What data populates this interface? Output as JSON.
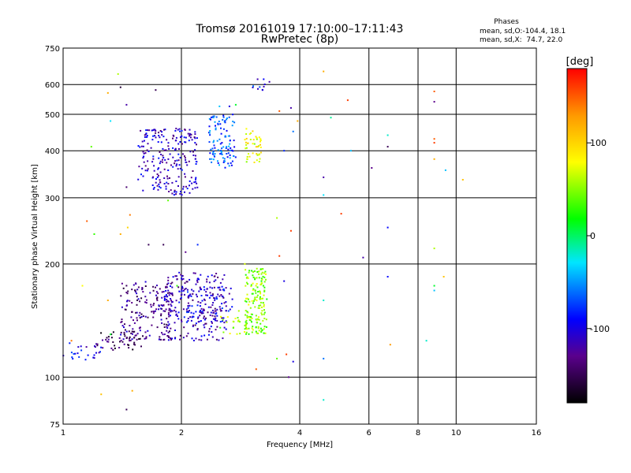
{
  "chart_data": {
    "type": "scatter",
    "title": "Tromsø 20161019 17:10:00–17:11:43",
    "subtitle": "RwPretec (8p)",
    "xlabel": "Frequency [MHz]",
    "ylabel": "Stationary phase Virtual Height [km]",
    "x_scale": "log",
    "y_scale": "log",
    "xlim": [
      1,
      16
    ],
    "ylim": [
      75,
      750
    ],
    "x_ticks": [
      1,
      2,
      4,
      6,
      8,
      10,
      16
    ],
    "y_ticks": [
      75,
      100,
      200,
      300,
      400,
      500,
      600,
      750
    ],
    "grid_x": [
      2,
      4,
      6,
      8,
      10
    ],
    "grid_y": [
      100,
      200,
      300,
      400,
      500,
      600
    ],
    "stats": {
      "title": "Phases",
      "line_o": "mean, sd,O:-104.4, 18.1",
      "line_x": "mean, sd,X:  74.7, 22.0"
    },
    "colorbar": {
      "label": "[deg]",
      "ticks": [
        100,
        0,
        -100
      ],
      "range": [
        -180,
        180
      ]
    },
    "clusters": [
      {
        "f": [
          1.0,
          1.25
        ],
        "h": [
          110,
          125
        ],
        "phase": -95,
        "n": 25
      },
      {
        "f": [
          1.22,
          1.6
        ],
        "h": [
          118,
          132
        ],
        "phase": -150,
        "n": 45
      },
      {
        "f": [
          1.4,
          1.9
        ],
        "h": [
          125,
          180
        ],
        "phase": -130,
        "n": 180
      },
      {
        "f": [
          1.8,
          2.6
        ],
        "h": [
          125,
          190
        ],
        "phase": -115,
        "n": 230
      },
      {
        "f": [
          2.0,
          2.7
        ],
        "h": [
          140,
          175
        ],
        "phase": -100,
        "n": 80
      },
      {
        "f": [
          2.5,
          2.95
        ],
        "h": [
          130,
          145
        ],
        "phase": 60,
        "n": 25
      },
      {
        "f": [
          2.9,
          3.3
        ],
        "h": [
          130,
          195
        ],
        "phase": 50,
        "n": 170
      },
      {
        "f": [
          1.55,
          2.2
        ],
        "h": [
          305,
          460
        ],
        "phase": -110,
        "n": 230
      },
      {
        "f": [
          2.35,
          2.75
        ],
        "h": [
          360,
          500
        ],
        "phase": -70,
        "n": 110
      },
      {
        "f": [
          2.9,
          3.2
        ],
        "h": [
          370,
          460
        ],
        "phase": 75,
        "n": 45
      },
      {
        "f": [
          3.0,
          3.3
        ],
        "h": [
          580,
          620
        ],
        "phase": -90,
        "n": 10
      }
    ],
    "scattered": [
      [
        1.18,
        410,
        40
      ],
      [
        1.32,
        480,
        -30
      ],
      [
        1.38,
        640,
        60
      ],
      [
        1.4,
        590,
        -160
      ],
      [
        1.45,
        530,
        -120
      ],
      [
        1.3,
        570,
        120
      ],
      [
        1.72,
        580,
        -150
      ],
      [
        1.48,
        270,
        140
      ],
      [
        1.46,
        250,
        100
      ],
      [
        1.15,
        260,
        150
      ],
      [
        1.2,
        240,
        30
      ],
      [
        1.4,
        240,
        120
      ],
      [
        1.45,
        320,
        -140
      ],
      [
        1.12,
        175,
        80
      ],
      [
        1.3,
        160,
        120
      ],
      [
        1.32,
        130,
        10
      ],
      [
        1.05,
        125,
        140
      ],
      [
        1.25,
        90,
        110
      ],
      [
        1.45,
        82,
        -150
      ],
      [
        1.5,
        92,
        120
      ],
      [
        1.65,
        225,
        -150
      ],
      [
        1.8,
        225,
        -150
      ],
      [
        1.85,
        295,
        40
      ],
      [
        2.05,
        215,
        -130
      ],
      [
        2.2,
        225,
        -80
      ],
      [
        2.5,
        525,
        -40
      ],
      [
        2.65,
        525,
        -100
      ],
      [
        2.75,
        530,
        10
      ],
      [
        3.35,
        610,
        -120
      ],
      [
        3.55,
        510,
        150
      ],
      [
        3.65,
        400,
        -80
      ],
      [
        3.5,
        265,
        60
      ],
      [
        3.55,
        210,
        160
      ],
      [
        3.65,
        180,
        -100
      ],
      [
        3.8,
        520,
        -120
      ],
      [
        3.85,
        450,
        -60
      ],
      [
        3.95,
        480,
        120
      ],
      [
        3.8,
        245,
        160
      ],
      [
        3.7,
        115,
        160
      ],
      [
        3.75,
        100,
        -130
      ],
      [
        3.85,
        110,
        -100
      ],
      [
        3.5,
        112,
        40
      ],
      [
        3.1,
        105,
        150
      ],
      [
        4.6,
        650,
        120
      ],
      [
        4.8,
        490,
        -10
      ],
      [
        4.6,
        340,
        -120
      ],
      [
        4.6,
        305,
        -30
      ],
      [
        4.6,
        160,
        -20
      ],
      [
        4.6,
        112,
        -60
      ],
      [
        4.6,
        87,
        -20
      ],
      [
        5.3,
        545,
        160
      ],
      [
        5.1,
        272,
        160
      ],
      [
        5.4,
        400,
        -40
      ],
      [
        5.8,
        208,
        -120
      ],
      [
        6.1,
        360,
        -130
      ],
      [
        6.7,
        440,
        -20
      ],
      [
        6.7,
        410,
        -150
      ],
      [
        6.7,
        250,
        -90
      ],
      [
        6.7,
        185,
        -90
      ],
      [
        6.8,
        122,
        130
      ],
      [
        8.4,
        125,
        -20
      ],
      [
        8.8,
        575,
        150
      ],
      [
        8.8,
        540,
        -130
      ],
      [
        8.8,
        430,
        150
      ],
      [
        8.8,
        420,
        160
      ],
      [
        8.8,
        380,
        120
      ],
      [
        8.8,
        220,
        60
      ],
      [
        8.8,
        175,
        10
      ],
      [
        8.8,
        170,
        -40
      ],
      [
        9.3,
        185,
        110
      ],
      [
        9.4,
        355,
        -40
      ],
      [
        10.4,
        335,
        110
      ],
      [
        1.95,
        175,
        30
      ],
      [
        2.9,
        200,
        70
      ],
      [
        2.8,
        150,
        60
      ]
    ]
  }
}
